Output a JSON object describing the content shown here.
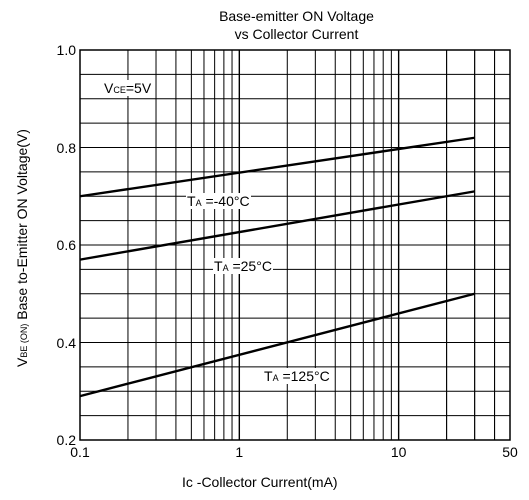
{
  "chart_data": {
    "type": "line",
    "title": [
      "Base-emitter ON Voltage",
      "vs Collector Current"
    ],
    "xlabel": "Ic -Collector Current(mA)",
    "ylabel": {
      "symbol": "V",
      "subscript": "BE (ON)",
      "text": "Base to-Emitter ON Voltage(V)"
    },
    "x_scale": "log",
    "xlim": [
      0.1,
      50
    ],
    "ylim": [
      0.2,
      1.0
    ],
    "x_ticks": [
      {
        "value": 0.1,
        "label": "0.1"
      },
      {
        "value": 1,
        "label": "1"
      },
      {
        "value": 10,
        "label": "10"
      },
      {
        "value": 50,
        "label": "50"
      }
    ],
    "y_ticks": [
      {
        "value": 0.2,
        "label": "0.2"
      },
      {
        "value": 0.4,
        "label": "0.4"
      },
      {
        "value": 0.6,
        "label": "0.6"
      },
      {
        "value": 0.8,
        "label": "0.8"
      },
      {
        "value": 1.0,
        "label": "1.0"
      }
    ],
    "grid": true,
    "condition": {
      "symbol": "V",
      "subscript": "CE",
      "value": "=5V"
    },
    "series": [
      {
        "name": "TA=-40°C",
        "label_main": "T",
        "label_sub": "A",
        "label_rest": " =-40°C",
        "x": [
          0.1,
          30
        ],
        "y": [
          0.7,
          0.82
        ]
      },
      {
        "name": "TA=25°C",
        "label_main": "T",
        "label_sub": "A",
        "label_rest": " =25°C",
        "x": [
          0.1,
          30
        ],
        "y": [
          0.57,
          0.71
        ]
      },
      {
        "name": "TA=125°C",
        "label_main": "T",
        "label_sub": "A",
        "label_rest": " =125°C",
        "x": [
          0.1,
          30
        ],
        "y": [
          0.29,
          0.5
        ]
      }
    ]
  }
}
